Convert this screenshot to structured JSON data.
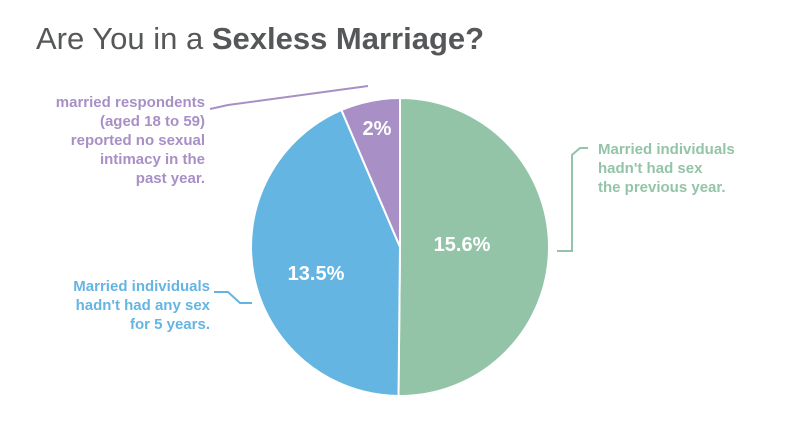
{
  "chart_data": {
    "type": "pie",
    "title_prefix": "Are You in a ",
    "title_emphasis": "Sexless Marriage?",
    "slices": [
      {
        "value_label": "15.6%",
        "value": 15.6,
        "color": "#93c4a8",
        "annotation": [
          "Married individuals",
          "hadn't had sex",
          "the previous year."
        ]
      },
      {
        "value_label": "13.5%",
        "value": 13.5,
        "color": "#65b5e3",
        "annotation": [
          "Married individuals",
          "hadn't had any sex",
          "for 5 years."
        ]
      },
      {
        "value_label": "2%",
        "value": 2,
        "color": "#a88fc6",
        "annotation": [
          "married respondents",
          "(aged 18 to 59)",
          "reported no sexual",
          "intimacy in the",
          "past year."
        ]
      }
    ]
  }
}
